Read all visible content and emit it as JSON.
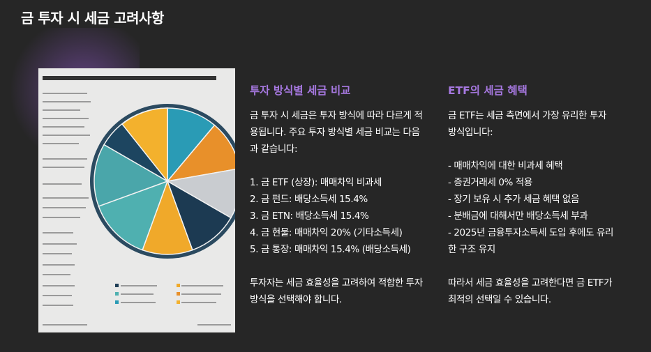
{
  "header": {
    "title": "금 투자 시 세금 고려사항"
  },
  "columns": [
    {
      "heading": "투자 방식별 세금 비교",
      "intro": "금 투자 시 세금은 투자 방식에 따라 다르게 적용됩니다. 주요 투자 방식별 세금 비교는 다음과 같습니다:",
      "items": [
        "1. 금 ETF (상장): 매매차익 비과세",
        "2. 금 펀드: 배당소득세 15.4%",
        "3. 금 ETN: 배당소득세 15.4%",
        "4. 금 현물: 매매차익 20% (기타소득세)",
        "5. 금 통장: 매매차익 15.4% (배당소득세)"
      ],
      "conclusion": "투자자는 세금 효율성을 고려하여 적합한 투자 방식을 선택해야 합니다."
    },
    {
      "heading": "ETF의 세금 혜택",
      "intro": "금 ETF는 세금 측면에서 가장 유리한 투자 방식입니다:",
      "items": [
        "- 매매차익에 대한 비과세 혜택",
        "- 증권거래세 0% 적용",
        "- 장기 보유 시 추가 세금 혜택 없음",
        "- 분배금에 대해서만 배당소득세 부과",
        "- 2025년 금융투자소득세 도입 후에도 유리한 구조 유지"
      ],
      "conclusion": "따라서 세금 효율성을 고려한다면 금 ETF가 최적의 선택일 수 있습니다."
    }
  ]
}
